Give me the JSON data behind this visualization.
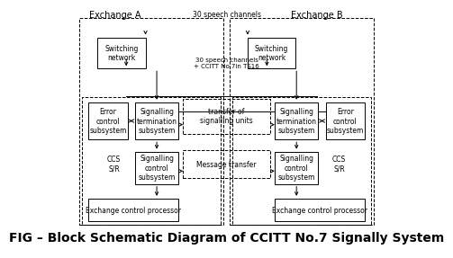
{
  "title": "FIG – Block Schematic Diagram of CCITT No.7 Signally System",
  "title_fontsize": 10,
  "bg_color": "#ffffff",
  "exchange_a_label": "Exchange A",
  "exchange_b_label": "Exchange B",
  "speech_channels_top": "30 speech channels",
  "speech_channels_bottom": "30 speech channels\n+ CCITT No.7in TS16",
  "transfer_label": "transfer of\nsignalling units",
  "message_label": "Message transfer",
  "ccs_sr": "CCS\nS/R"
}
